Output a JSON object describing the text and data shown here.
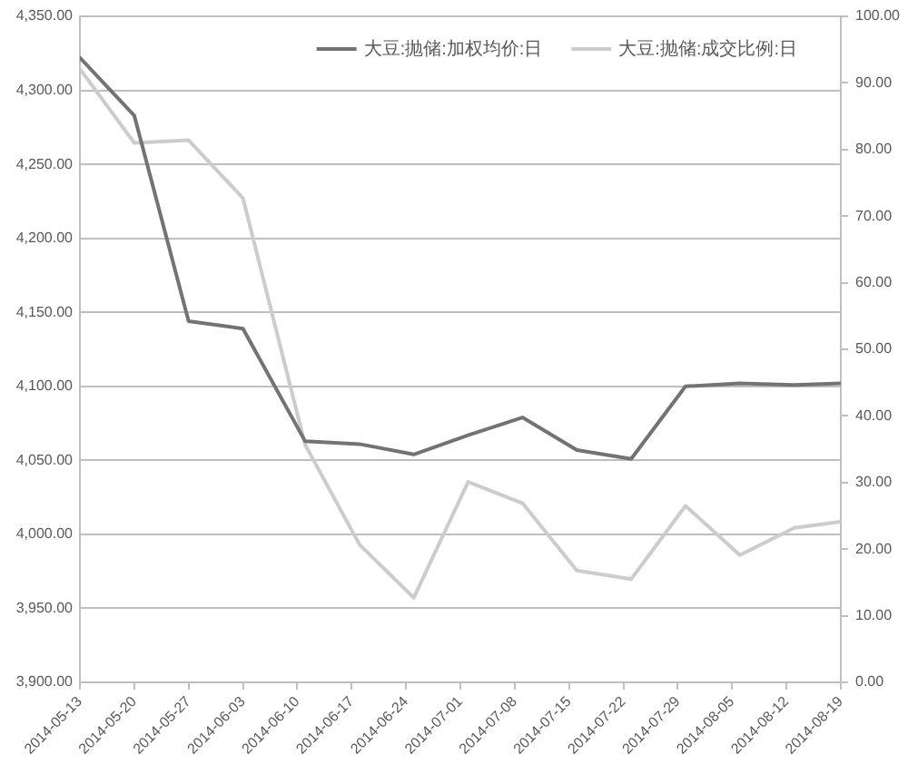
{
  "chart_data": {
    "type": "line",
    "x": [
      "2014-05-13",
      "2014-05-20",
      "2014-05-27",
      "2014-06-03",
      "2014-06-11",
      "2014-06-18",
      "2014-06-25",
      "2014-07-02",
      "2014-07-09",
      "2014-07-16",
      "2014-07-23",
      "2014-07-30",
      "2014-08-06",
      "2014-08-13",
      "2014-08-19"
    ],
    "xlim": [
      "2014-05-13",
      "2014-08-19"
    ],
    "xticks": [
      "2014-05-13",
      "2014-05-20",
      "2014-05-27",
      "2014-06-03",
      "2014-06-10",
      "2014-06-17",
      "2014-06-24",
      "2014-07-01",
      "2014-07-08",
      "2014-07-15",
      "2014-07-22",
      "2014-07-29",
      "2014-08-05",
      "2014-08-12",
      "2014-08-19"
    ],
    "ylim": [
      3900,
      4350
    ],
    "yticks": [
      {
        "value": 3900,
        "label": "3,900.00"
      },
      {
        "value": 3950,
        "label": "3,950.00"
      },
      {
        "value": 4000,
        "label": "4,000.00"
      },
      {
        "value": 4050,
        "label": "4,050.00"
      },
      {
        "value": 4100,
        "label": "4,100.00"
      },
      {
        "value": 4150,
        "label": "4,150.00"
      },
      {
        "value": 4200,
        "label": "4,200.00"
      },
      {
        "value": 4250,
        "label": "4,250.00"
      },
      {
        "value": 4300,
        "label": "4,300.00"
      },
      {
        "value": 4350,
        "label": "4,350.00"
      }
    ],
    "y2lim": [
      0,
      100
    ],
    "y2ticks": [
      {
        "value": 0,
        "label": "0.00"
      },
      {
        "value": 10,
        "label": "10.00"
      },
      {
        "value": 20,
        "label": "20.00"
      },
      {
        "value": 30,
        "label": "30.00"
      },
      {
        "value": 40,
        "label": "40.00"
      },
      {
        "value": 50,
        "label": "50.00"
      },
      {
        "value": 60,
        "label": "60.00"
      },
      {
        "value": 70,
        "label": "70.00"
      },
      {
        "value": 80,
        "label": "80.00"
      },
      {
        "value": 90,
        "label": "90.00"
      },
      {
        "value": 100,
        "label": "100.00"
      }
    ],
    "series": [
      {
        "name": "大豆:抛储:加权均价:日",
        "color": "#737373",
        "values": [
          4322,
          4283,
          4144,
          4139,
          4063,
          4061,
          4054,
          4067,
          4079,
          4057,
          4051,
          4100,
          4102,
          4101,
          4102
        ]
      },
      {
        "name": "大豆:抛储:成交比例:日",
        "color": "#cccccc",
        "axis": "y2",
        "values": [
          92.1,
          81.0,
          81.4,
          72.7,
          35.7,
          20.7,
          12.7,
          30.1,
          26.9,
          16.8,
          15.5,
          26.5,
          19.1,
          23.2,
          24.1
        ]
      }
    ],
    "grid": "y",
    "legend": "top right",
    "marker": "none",
    "line_style": "solid"
  }
}
